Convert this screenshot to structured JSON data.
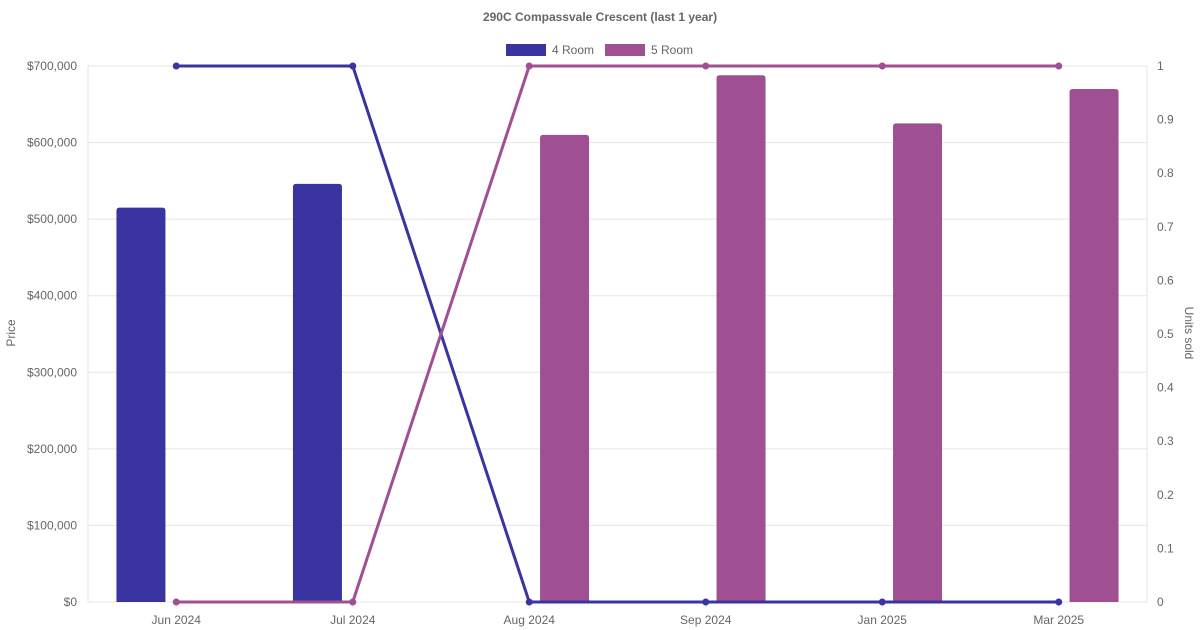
{
  "chart_data": {
    "type": "bar",
    "title": "290C Compassvale Crescent (last 1 year)",
    "categories": [
      "Jun 2024",
      "Jul 2024",
      "Aug 2024",
      "Sep 2024",
      "Jan 2025",
      "Mar 2025"
    ],
    "ylabel": "Price",
    "y2label": "Units sold",
    "ylim": [
      0,
      700000
    ],
    "y2lim": [
      0,
      1
    ],
    "yticks": [
      "$0",
      "$100,000",
      "$200,000",
      "$300,000",
      "$400,000",
      "$500,000",
      "$600,000",
      "$700,000"
    ],
    "y2ticks": [
      "0",
      "0.1",
      "0.2",
      "0.3",
      "0.4",
      "0.5",
      "0.6",
      "0.7",
      "0.8",
      "0.9",
      "1"
    ],
    "grid": true,
    "legend_position": "top-center",
    "series": [
      {
        "name": "4 Room",
        "color": "#3a34a0",
        "price": [
          515000,
          546000,
          null,
          null,
          null,
          null
        ],
        "units_sold": [
          1,
          1,
          0,
          0,
          0,
          0
        ]
      },
      {
        "name": "5 Room",
        "color": "#a05092",
        "price": [
          null,
          null,
          610000,
          688000,
          625000,
          670000
        ],
        "units_sold": [
          0,
          0,
          1,
          1,
          1,
          1
        ]
      }
    ]
  }
}
